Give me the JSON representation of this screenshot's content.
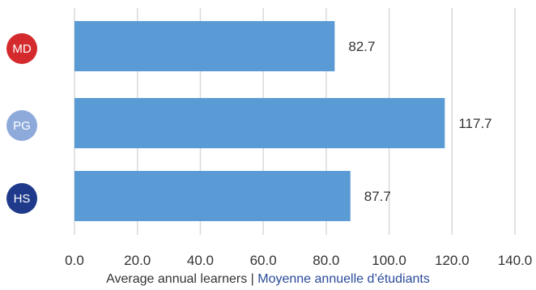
{
  "chart_data": {
    "type": "bar",
    "orientation": "horizontal",
    "categories": [
      "MD",
      "PG",
      "HS"
    ],
    "values": [
      82.7,
      117.7,
      87.7
    ],
    "value_labels": [
      "82.7",
      "117.7",
      "87.7"
    ],
    "xlim": [
      0,
      140
    ],
    "x_ticks": [
      "0.0",
      "20.0",
      "40.0",
      "60.0",
      "80.0",
      "100.0",
      "120.0",
      "140.0"
    ],
    "grid": "vertical",
    "bar_color": "#5b9bd5",
    "category_badge_colors": [
      "#d42a2e",
      "#8eaadb",
      "#1f3a8a"
    ],
    "xlabel": {
      "english": "Average annual learners",
      "separator": "|",
      "french": "Moyenne annuelle d’étudiants"
    }
  }
}
